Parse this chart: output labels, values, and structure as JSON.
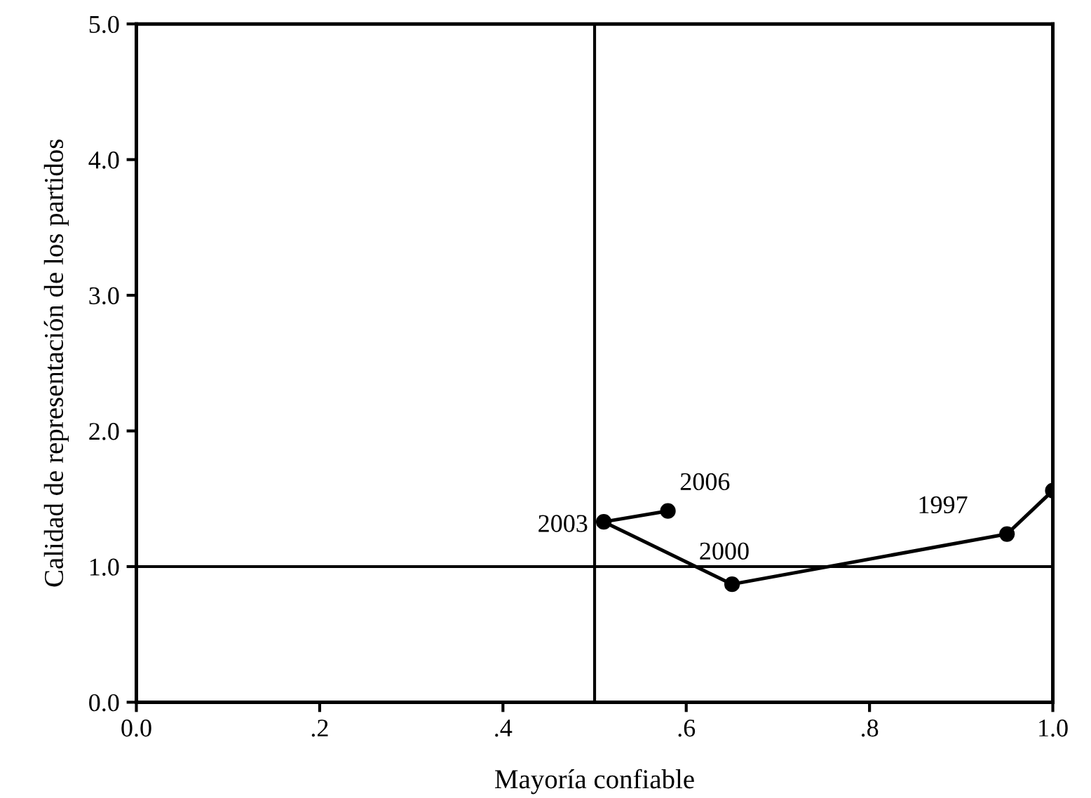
{
  "chart_data": {
    "type": "line",
    "xlabel": "Mayoría confiable",
    "ylabel": "Calidad de representación de los partidos",
    "x": [
      1.0,
      0.95,
      0.65,
      0.51,
      0.58
    ],
    "series": [
      {
        "color": "#000000",
        "values": [
          1.56,
          1.24,
          0.87,
          1.33,
          1.41
        ]
      }
    ],
    "marker": "circle",
    "line_style": "solid",
    "grid": false,
    "legend": false,
    "xlim": [
      0,
      1
    ],
    "ylim": [
      0,
      5
    ],
    "xticks": [
      {
        "value": 0,
        "label": "0.0"
      },
      {
        "value": 0.2,
        "label": ".2"
      },
      {
        "value": 0.4,
        "label": ".4"
      },
      {
        "value": 0.6,
        "label": ".6"
      },
      {
        "value": 0.8,
        "label": ".8"
      },
      {
        "value": 1,
        "label": "1.0"
      }
    ],
    "yticks": [
      {
        "value": 0,
        "label": "0.0"
      },
      {
        "value": 1,
        "label": "1.0"
      },
      {
        "value": 2,
        "label": "2.0"
      },
      {
        "value": 3,
        "label": "3.0"
      },
      {
        "value": 4,
        "label": "4.0"
      },
      {
        "value": 5,
        "label": "5.0"
      }
    ],
    "ref_lines": [
      {
        "axis": "x",
        "value": 0.5,
        "color": "#000000"
      },
      {
        "axis": "y",
        "value": 1.0,
        "color": "#000000"
      }
    ],
    "annotations": [
      {
        "text": "1997",
        "x": 0.95,
        "y": 1.24
      },
      {
        "text": "2000",
        "x": 0.65,
        "y": 0.87
      },
      {
        "text": "2003",
        "x": 0.51,
        "y": 1.33
      },
      {
        "text": "2006",
        "x": 0.58,
        "y": 1.41
      }
    ]
  }
}
